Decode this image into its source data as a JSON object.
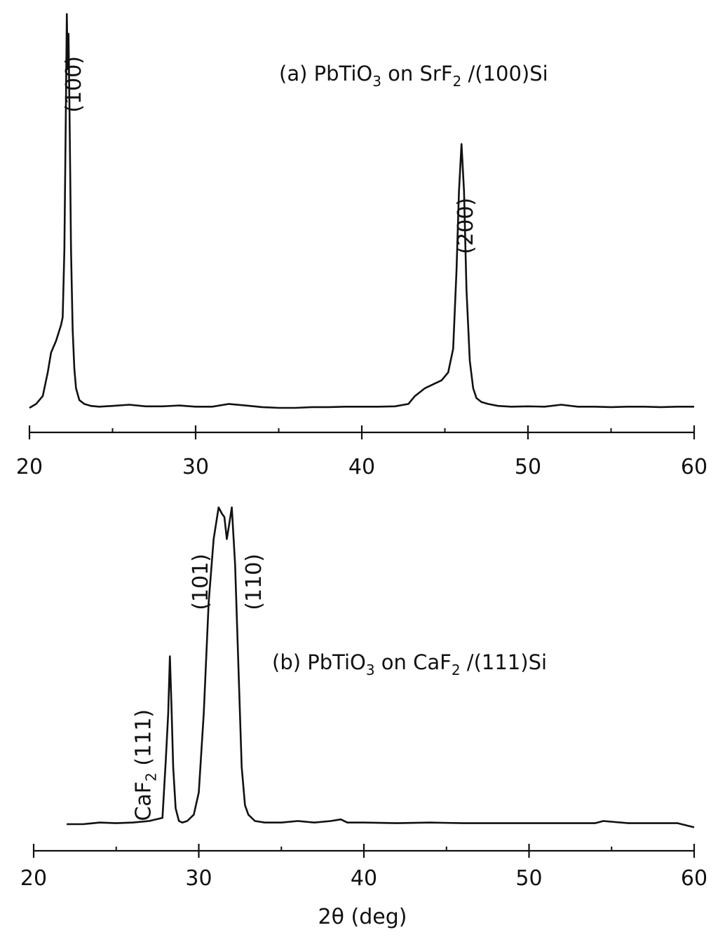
{
  "chart_data": [
    {
      "type": "line",
      "title": "(a) PbTiO3 on SrF2 /(100)Si",
      "title_parts": {
        "lead": "(a) PbTiO",
        "sub1": "3",
        "mid": " on SrF",
        "sub2": "2",
        "tail": " /(100)Si"
      },
      "xlim": [
        20,
        60
      ],
      "ylim": [
        0,
        100
      ],
      "xticks": [
        20,
        30,
        40,
        50,
        60
      ],
      "minor_xticks": [
        25,
        35,
        45,
        55
      ],
      "xlabel": "",
      "ylabel": "",
      "grid": false,
      "legend": "none",
      "peak_labels": [
        {
          "text": "(100)",
          "x": 22.4
        },
        {
          "text": "(200)",
          "x": 46.0
        }
      ],
      "series": [
        {
          "x": [
            20.0,
            20.4,
            20.8,
            21.1,
            21.3,
            21.6,
            21.9,
            22.0,
            22.1,
            22.2,
            22.25,
            22.3,
            22.35,
            22.4,
            22.45,
            22.5,
            22.6,
            22.7,
            22.8,
            23.0,
            23.3,
            23.7,
            24.2,
            25.0,
            26.0,
            27.0,
            28.0,
            29.0,
            30.0,
            31.0,
            32.0,
            33.0,
            34.0,
            35.0,
            36.0,
            37.0,
            38.0,
            39.0,
            40.0,
            41.0,
            42.0,
            42.8,
            43.2,
            43.5,
            43.8,
            44.3,
            44.8,
            45.2,
            45.5,
            45.7,
            45.85,
            46.0,
            46.15,
            46.3,
            46.5,
            46.7,
            46.9,
            47.2,
            47.6,
            48.2,
            49.0,
            50.0,
            51.0,
            52.0,
            53.0,
            54.0,
            55.0,
            56.0,
            57.0,
            58.0,
            59.0,
            60.0
          ],
          "y": [
            0.0,
            1.0,
            3.0,
            9.0,
            14.0,
            17.0,
            21.0,
            23.0,
            40.0,
            78.0,
            100.0,
            86.0,
            95.0,
            79.0,
            60.0,
            40.0,
            20.0,
            10.0,
            5.0,
            2.0,
            1.0,
            0.5,
            0.3,
            0.5,
            0.8,
            0.4,
            0.4,
            0.6,
            0.3,
            0.3,
            1.0,
            0.6,
            0.2,
            0.0,
            0.0,
            0.2,
            0.2,
            0.3,
            0.3,
            0.3,
            0.4,
            1.0,
            3.0,
            4.0,
            5.0,
            6.0,
            7.0,
            9.0,
            15.0,
            35.0,
            55.0,
            67.0,
            55.0,
            30.0,
            12.0,
            5.0,
            2.5,
            1.5,
            1.0,
            0.5,
            0.3,
            0.4,
            0.3,
            0.8,
            0.3,
            0.3,
            0.2,
            0.3,
            0.3,
            0.2,
            0.3,
            0.3
          ]
        }
      ]
    },
    {
      "type": "line",
      "title": "(b) PbTiO3 on CaF2 /(111)Si",
      "title_parts": {
        "lead": "(b) PbTiO",
        "sub1": "3",
        "mid": " on CaF",
        "sub2": "2",
        "tail": " /(111)Si"
      },
      "xlim": [
        20,
        60
      ],
      "ylim": [
        0,
        100
      ],
      "xticks": [
        20,
        30,
        40,
        50,
        60
      ],
      "minor_xticks": [
        25,
        35,
        45,
        55
      ],
      "xlabel": "2θ (deg)",
      "ylabel": "",
      "grid": false,
      "legend": "none",
      "peak_labels": [
        {
          "text": "CaF2 (111)",
          "lead": "CaF",
          "sub": "2",
          "tail": " (111)",
          "x": 28.0
        },
        {
          "text": "(101)",
          "x": 31.3
        },
        {
          "text": "(110)",
          "x": 32.4
        }
      ],
      "series": [
        {
          "x": [
            22.0,
            23.0,
            24.0,
            25.0,
            26.0,
            27.0,
            27.8,
            28.0,
            28.15,
            28.25,
            28.35,
            28.45,
            28.6,
            28.8,
            29.0,
            29.3,
            29.7,
            30.0,
            30.3,
            30.6,
            30.9,
            31.2,
            31.4,
            31.55,
            31.7,
            31.85,
            32.0,
            32.2,
            32.4,
            32.6,
            32.8,
            33.0,
            33.4,
            34.0,
            35.0,
            36.0,
            37.0,
            38.0,
            38.6,
            39.0,
            40.0,
            42.0,
            44.0,
            46.0,
            48.0,
            50.0,
            52.0,
            54.0,
            54.5,
            56.0,
            58.0,
            59.0,
            60.0
          ],
          "y": [
            0.0,
            0.0,
            0.5,
            0.3,
            0.5,
            1.0,
            2.0,
            20.0,
            35.0,
            53.0,
            37.0,
            18.0,
            5.0,
            1.0,
            0.5,
            1.0,
            3.0,
            10.0,
            35.0,
            70.0,
            90.0,
            100.0,
            98.0,
            97.0,
            90.0,
            95.0,
            100.0,
            82.0,
            50.0,
            18.0,
            6.0,
            3.0,
            1.0,
            0.5,
            0.5,
            1.0,
            0.5,
            1.0,
            1.5,
            0.5,
            0.5,
            0.3,
            0.5,
            0.3,
            0.3,
            0.3,
            0.3,
            0.3,
            1.0,
            0.3,
            0.3,
            0.3,
            -1.0
          ]
        }
      ]
    }
  ]
}
